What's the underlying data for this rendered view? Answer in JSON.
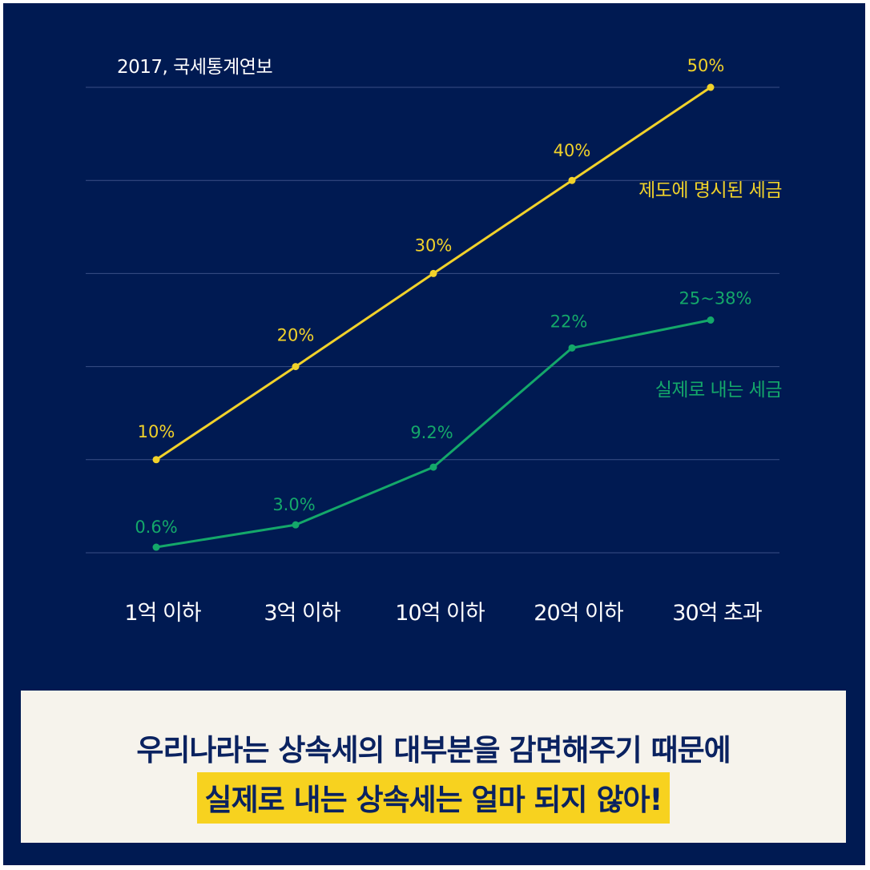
{
  "source_label": "2017, 국세통계연보",
  "caption": {
    "line1": "우리나라는 상속세의 대부분을 감면해주기 때문에",
    "line2": "실제로 내는 상속세는 얼마 되지 않아!"
  },
  "colors": {
    "background": "#001a52",
    "statutory": "#f1d22a",
    "actual": "#14a86a",
    "highlight": "#f7d21f",
    "caption_bg": "#f6f3ec",
    "caption_text": "#0a2260"
  },
  "chart_data": {
    "type": "line",
    "title": "",
    "xlabel": "",
    "ylabel": "",
    "ylim": [
      0,
      50
    ],
    "grid": true,
    "categories": [
      "1억 이하",
      "3억 이하",
      "10억 이하",
      "20억 이하",
      "30억 초과"
    ],
    "series": [
      {
        "name": "제도에 명시된 세금",
        "values": [
          10,
          20,
          30,
          40,
          50
        ],
        "labels": [
          "10%",
          "20%",
          "30%",
          "40%",
          "50%"
        ]
      },
      {
        "name": "실제로 내는 세금",
        "values": [
          0.6,
          3.0,
          9.2,
          22,
          25
        ],
        "labels": [
          "0.6%",
          "3.0%",
          "9.2%",
          "22%",
          "25~38%"
        ]
      }
    ]
  }
}
